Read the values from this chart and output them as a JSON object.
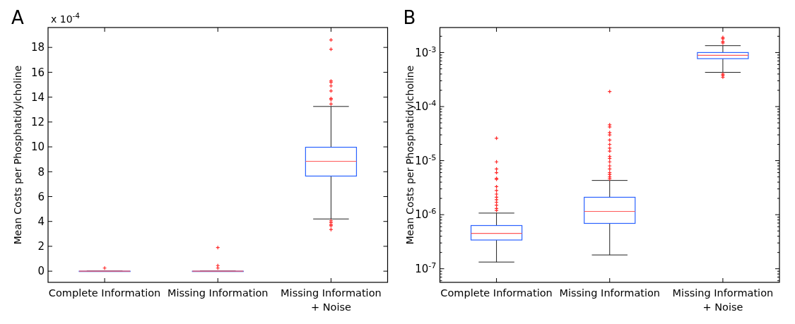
{
  "chart_data": [
    {
      "type": "box",
      "title": "A",
      "ylabel": "Mean Costs per Phosphatidylcholine",
      "annotations": [
        "x 10$^{-4}$"
      ],
      "categories": [
        "Complete Information",
        "Missing Information",
        "Missing Information\n+ Noise"
      ],
      "ylim": [
        -0.9,
        19.6
      ],
      "yticks": [
        0,
        2,
        4,
        6,
        8,
        10,
        12,
        14,
        16,
        18
      ],
      "grid": false,
      "series": [
        {
          "color": "#2a62ff",
          "boxes": [
            {
              "low": 0,
              "q1": 0,
              "median": 0,
              "q3": 0,
              "high": 0,
              "outliers": [
                0.25
              ]
            },
            {
              "low": 0,
              "q1": 0,
              "median": 0,
              "q3": 0,
              "high": 0,
              "outliers": [
                1.9,
                0.45,
                0.25
              ]
            },
            {
              "low": 4.2,
              "q1": 7.65,
              "median": 8.84,
              "q3": 9.97,
              "high": 13.25,
              "outliers": [
                18.6,
                17.85,
                15.3,
                15.2,
                14.9,
                14.5,
                13.9,
                13.8,
                13.45,
                4.05,
                3.9,
                3.75,
                3.65,
                3.35
              ]
            }
          ]
        }
      ]
    },
    {
      "type": "box",
      "title": "B",
      "ylabel": "Mean Costs per Phosphatidylcholine",
      "categories": [
        "Complete Information",
        "Missing Information",
        "Missing Information\n+ Noise"
      ],
      "log": true,
      "ylim": [
        5.6e-08,
        0.0029
      ],
      "grid": false,
      "yticks": [
        {
          "value": 6e-08,
          "label": null
        },
        {
          "value": 7e-08,
          "label": null
        },
        {
          "value": 8e-08,
          "label": null
        },
        {
          "value": 9e-08,
          "label": null
        },
        {
          "value": 1e-07,
          "label": "10$^{-7}$"
        },
        {
          "value": 2e-07,
          "label": null
        },
        {
          "value": 3e-07,
          "label": null
        },
        {
          "value": 4e-07,
          "label": null
        },
        {
          "value": 5e-07,
          "label": null
        },
        {
          "value": 6e-07,
          "label": null
        },
        {
          "value": 7e-07,
          "label": null
        },
        {
          "value": 8e-07,
          "label": null
        },
        {
          "value": 9e-07,
          "label": null
        },
        {
          "value": 1e-06,
          "label": "10$^{-6}$"
        },
        {
          "value": 2e-06,
          "label": null
        },
        {
          "value": 3e-06,
          "label": null
        },
        {
          "value": 4e-06,
          "label": null
        },
        {
          "value": 5e-06,
          "label": null
        },
        {
          "value": 6e-06,
          "label": null
        },
        {
          "value": 7e-06,
          "label": null
        },
        {
          "value": 8e-06,
          "label": null
        },
        {
          "value": 9e-06,
          "label": null
        },
        {
          "value": 1e-05,
          "label": "10$^{-5}$"
        },
        {
          "value": 2e-05,
          "label": null
        },
        {
          "value": 3e-05,
          "label": null
        },
        {
          "value": 4e-05,
          "label": null
        },
        {
          "value": 5e-05,
          "label": null
        },
        {
          "value": 6e-05,
          "label": null
        },
        {
          "value": 7e-05,
          "label": null
        },
        {
          "value": 8e-05,
          "label": null
        },
        {
          "value": 9e-05,
          "label": null
        },
        {
          "value": 0.0001,
          "label": "10$^{-4}$"
        },
        {
          "value": 0.0002,
          "label": null
        },
        {
          "value": 0.0003,
          "label": null
        },
        {
          "value": 0.0004,
          "label": null
        },
        {
          "value": 0.0005,
          "label": null
        },
        {
          "value": 0.0006,
          "label": null
        },
        {
          "value": 0.0007,
          "label": null
        },
        {
          "value": 0.0008,
          "label": null
        },
        {
          "value": 0.0009,
          "label": null
        },
        {
          "value": 0.001,
          "label": "10$^{-3}$"
        },
        {
          "value": 0.002,
          "label": null
        }
      ],
      "series": [
        {
          "color": "#2a62ff",
          "boxes": [
            {
              "low": 1.33e-07,
              "q1": 3.4e-07,
              "median": 4.5e-07,
              "q3": 6.3e-07,
              "high": 1.07e-06,
              "outliers": [
                2.6e-05,
                9.5e-06,
                7e-06,
                6e-06,
                4.7e-06,
                4.5e-06,
                3.3e-06,
                2.8e-06,
                2.4e-06,
                2.1e-06,
                1.9e-06,
                1.7e-06,
                1.5e-06,
                1.3e-06,
                1.2e-06
              ]
            },
            {
              "low": 1.8e-07,
              "q1": 6.9e-07,
              "median": 1.15e-06,
              "q3": 2.1e-06,
              "high": 4.3e-06,
              "outliers": [
                0.00019,
                4.6e-05,
                4.2e-05,
                3.3e-05,
                3e-05,
                2.4e-05,
                2e-05,
                1.7e-05,
                1.5e-05,
                1.2e-05,
                1.1e-05,
                9.5e-06,
                8e-06,
                7e-06,
                6e-06,
                5.5e-06,
                5e-06,
                4.6e-06
              ]
            },
            {
              "low": 0.00043,
              "q1": 0.00077,
              "median": 0.00089,
              "q3": 0.001,
              "high": 0.00134,
              "outliers": [
                0.0019,
                0.0018,
                0.0016,
                0.0015,
                0.0004,
                0.00038,
                0.00035
              ]
            }
          ]
        }
      ]
    }
  ]
}
